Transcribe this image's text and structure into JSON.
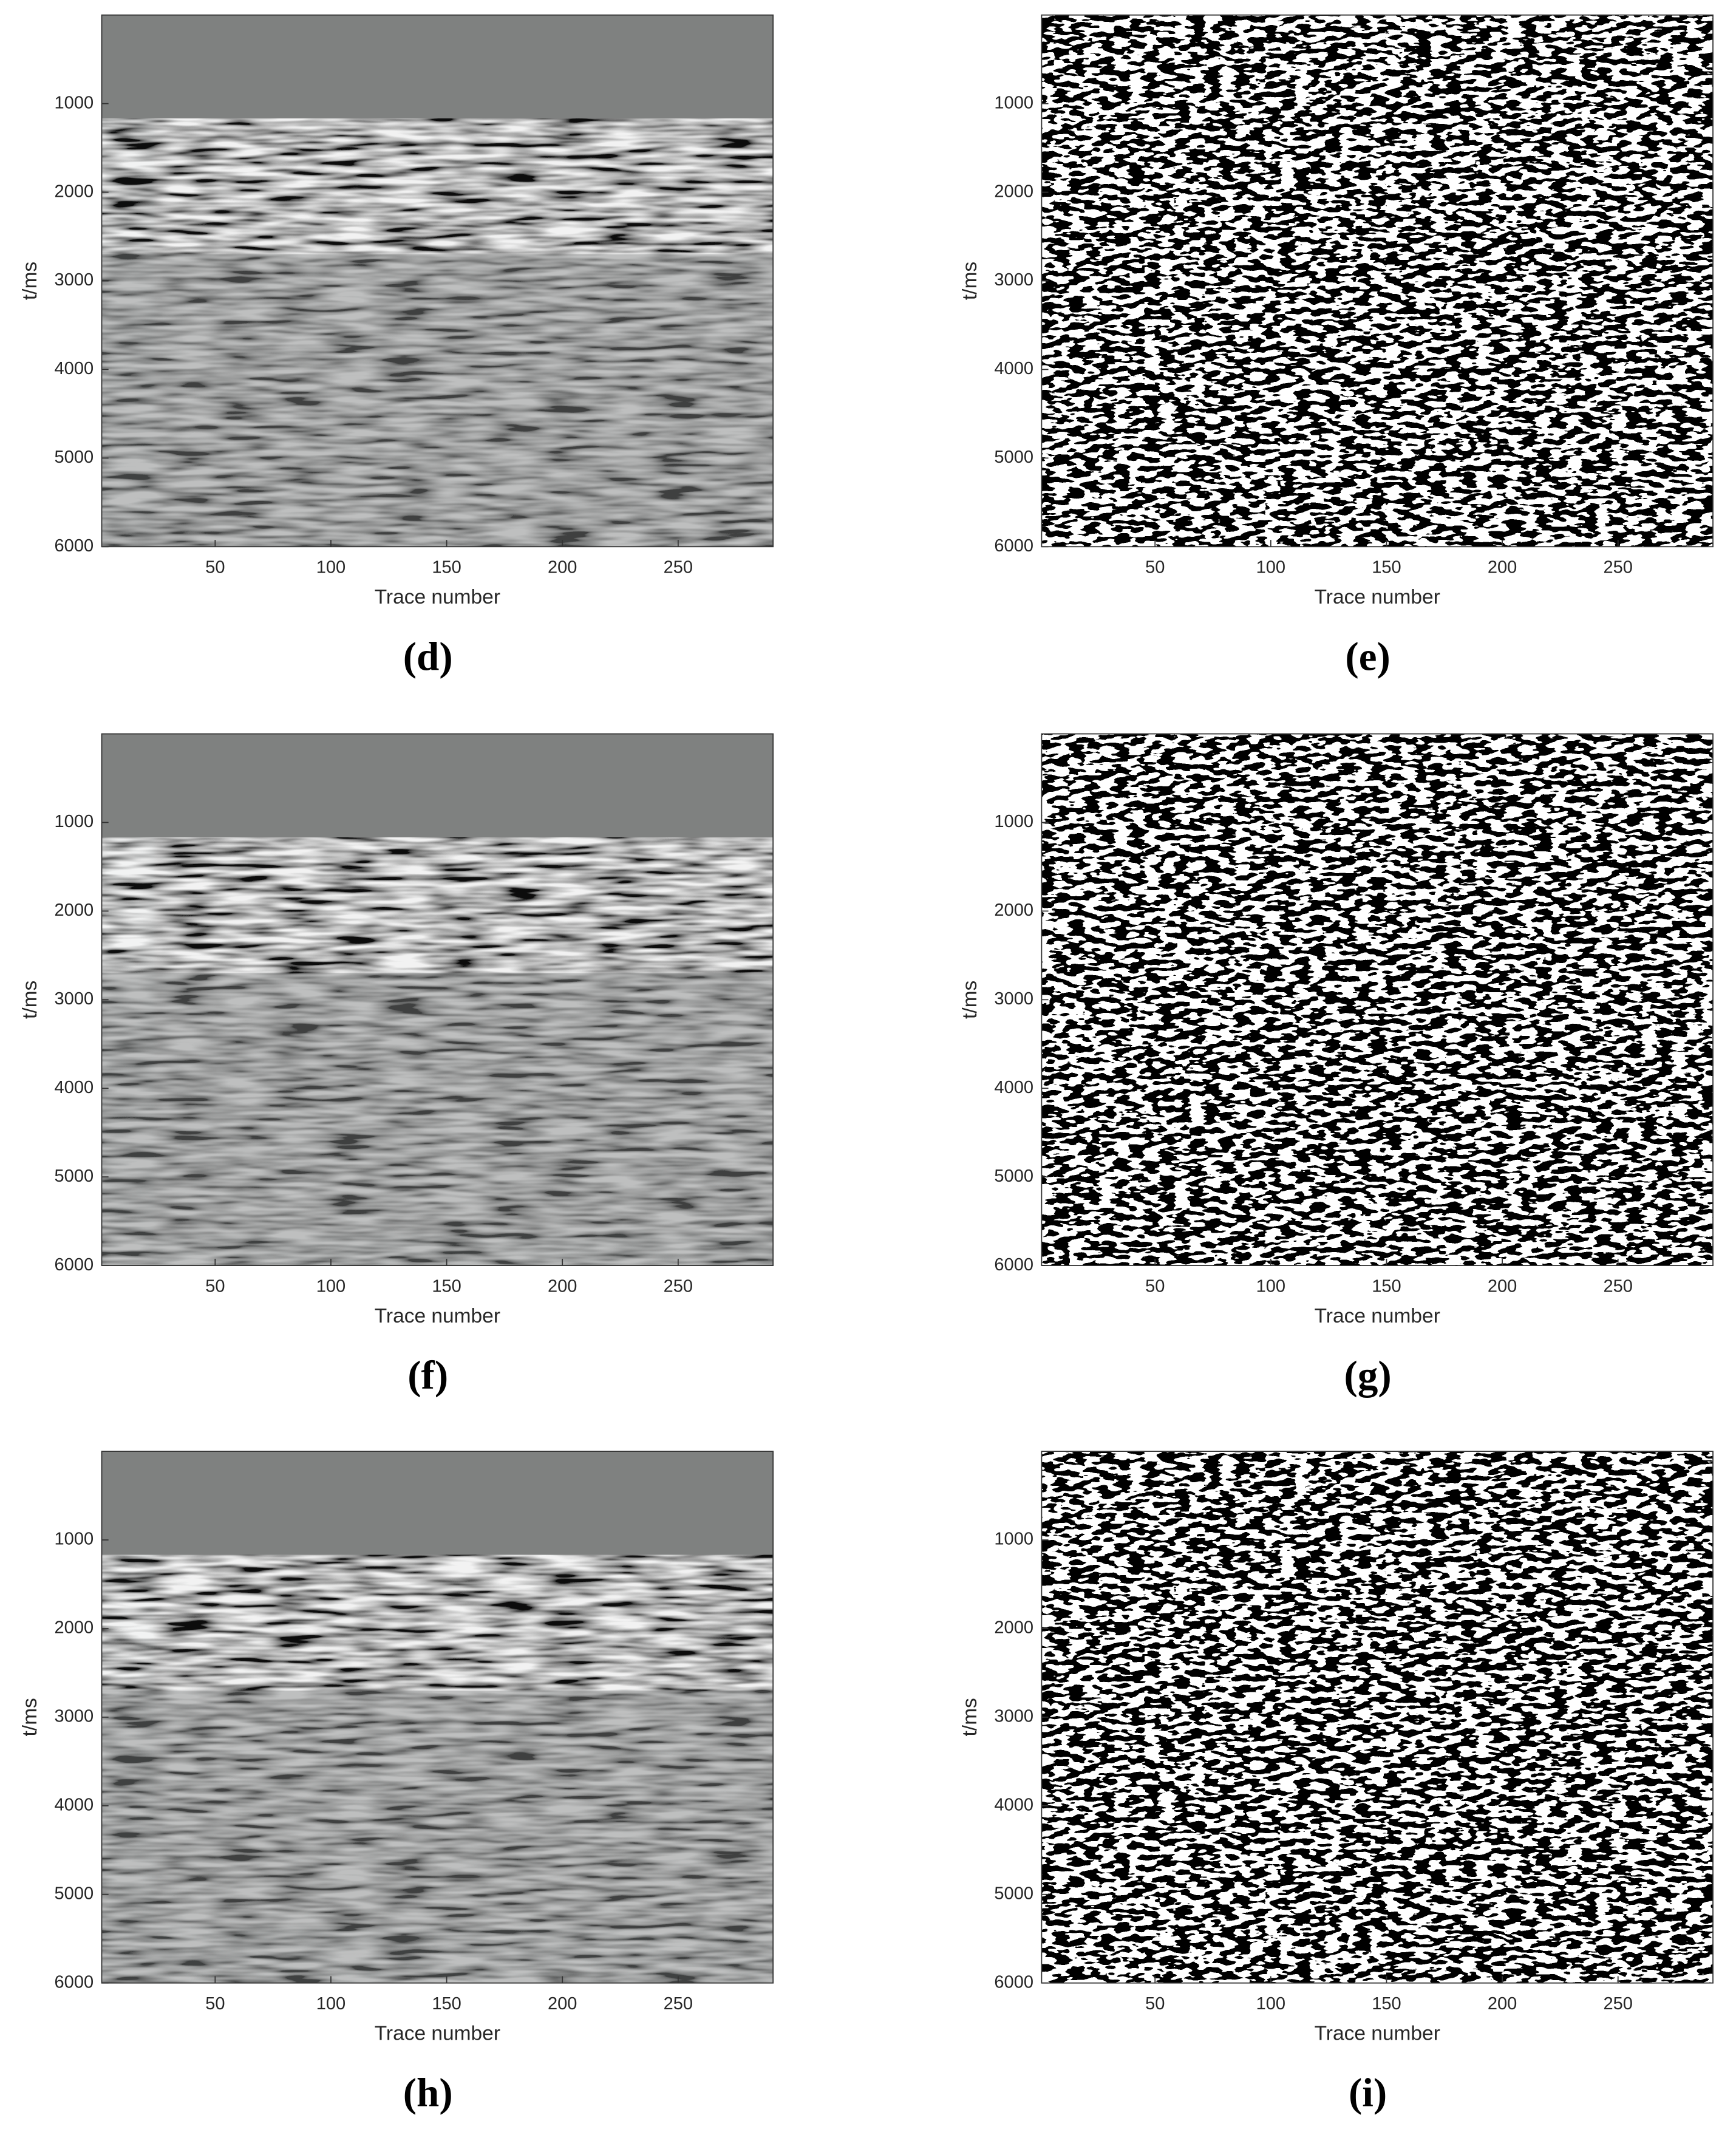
{
  "chart_data": [
    {
      "type": "seismic",
      "style": "gray",
      "label": "(d)",
      "xlabel": "Trace number",
      "ylabel": "t/ms",
      "xlim": [
        1,
        291
      ],
      "ylim": [
        0,
        6000
      ],
      "y_reversed": true,
      "xticks": [
        50,
        100,
        150,
        200,
        250
      ],
      "yticks": [
        1000,
        2000,
        3000,
        4000,
        5000,
        6000
      ]
    },
    {
      "type": "seismic",
      "style": "binary",
      "label": "(e)",
      "xlabel": "Trace number",
      "ylabel": "t/ms",
      "xlim": [
        1,
        291
      ],
      "ylim": [
        0,
        6000
      ],
      "y_reversed": true,
      "xticks": [
        50,
        100,
        150,
        200,
        250
      ],
      "yticks": [
        1000,
        2000,
        3000,
        4000,
        5000,
        6000
      ]
    },
    {
      "type": "seismic",
      "style": "gray",
      "label": "(f)",
      "xlabel": "Trace number",
      "ylabel": "t/ms",
      "xlim": [
        1,
        291
      ],
      "ylim": [
        0,
        6000
      ],
      "y_reversed": true,
      "xticks": [
        50,
        100,
        150,
        200,
        250
      ],
      "yticks": [
        1000,
        2000,
        3000,
        4000,
        5000,
        6000
      ]
    },
    {
      "type": "seismic",
      "style": "binary",
      "label": "(g)",
      "xlabel": "Trace number",
      "ylabel": "t/ms",
      "xlim": [
        1,
        291
      ],
      "ylim": [
        0,
        6000
      ],
      "y_reversed": true,
      "xticks": [
        50,
        100,
        150,
        200,
        250
      ],
      "yticks": [
        1000,
        2000,
        3000,
        4000,
        5000,
        6000
      ]
    },
    {
      "type": "seismic",
      "style": "gray",
      "label": "(h)",
      "xlabel": "Trace number",
      "ylabel": "t/ms",
      "xlim": [
        1,
        291
      ],
      "ylim": [
        0,
        6000
      ],
      "y_reversed": true,
      "xticks": [
        50,
        100,
        150,
        200,
        250
      ],
      "yticks": [
        1000,
        2000,
        3000,
        4000,
        5000,
        6000
      ]
    },
    {
      "type": "seismic",
      "style": "binary",
      "label": "(i)",
      "xlabel": "Trace number",
      "ylabel": "t/ms",
      "xlim": [
        1,
        291
      ],
      "ylim": [
        0,
        6000
      ],
      "y_reversed": true,
      "xticks": [
        50,
        100,
        150,
        200,
        250
      ],
      "yticks": [
        1000,
        2000,
        3000,
        4000,
        5000,
        6000
      ]
    }
  ]
}
